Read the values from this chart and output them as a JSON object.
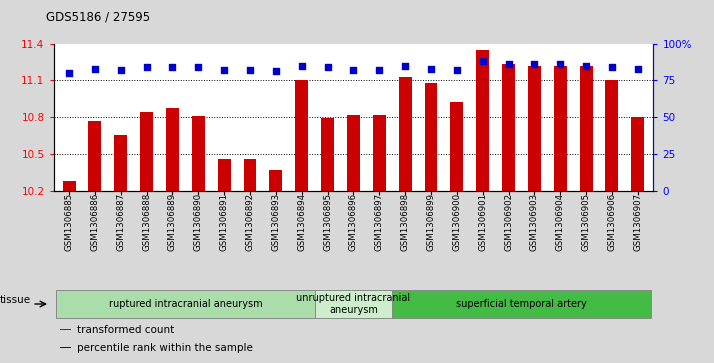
{
  "title": "GDS5186 / 27595",
  "samples": [
    "GSM1306885",
    "GSM1306886",
    "GSM1306887",
    "GSM1306888",
    "GSM1306889",
    "GSM1306890",
    "GSM1306891",
    "GSM1306892",
    "GSM1306893",
    "GSM1306894",
    "GSM1306895",
    "GSM1306896",
    "GSM1306897",
    "GSM1306898",
    "GSM1306899",
    "GSM1306900",
    "GSM1306901",
    "GSM1306902",
    "GSM1306903",
    "GSM1306904",
    "GSM1306905",
    "GSM1306906",
    "GSM1306907"
  ],
  "transformed_count": [
    10.28,
    10.77,
    10.65,
    10.84,
    10.87,
    10.81,
    10.46,
    10.46,
    10.37,
    11.1,
    10.79,
    10.82,
    10.82,
    11.13,
    11.08,
    10.92,
    11.35,
    11.23,
    11.22,
    11.22,
    11.22,
    11.1,
    10.8
  ],
  "percentile_rank": [
    80,
    83,
    82,
    84,
    84,
    84,
    82,
    82,
    81,
    85,
    84,
    82,
    82,
    85,
    83,
    82,
    88,
    86,
    86,
    86,
    85,
    84,
    83
  ],
  "bar_color": "#cc0000",
  "dot_color": "#0000cc",
  "ylim_left": [
    10.2,
    11.4
  ],
  "ylim_right": [
    0,
    100
  ],
  "yticks_left": [
    10.2,
    10.5,
    10.8,
    11.1,
    11.4
  ],
  "yticks_right": [
    0,
    25,
    50,
    75,
    100
  ],
  "ytick_labels_right": [
    "0",
    "25",
    "50",
    "75",
    "100%"
  ],
  "groups": [
    {
      "label": "ruptured intracranial aneurysm",
      "start": 0,
      "end": 9,
      "color": "#aaddaa"
    },
    {
      "label": "unruptured intracranial\naneurysm",
      "start": 10,
      "end": 12,
      "color": "#cceecc"
    },
    {
      "label": "superficial temporal artery",
      "start": 13,
      "end": 22,
      "color": "#44bb44"
    }
  ],
  "legend_items": [
    {
      "label": "transformed count",
      "color": "#cc0000"
    },
    {
      "label": "percentile rank within the sample",
      "color": "#0000cc"
    }
  ],
  "tissue_label": "tissue",
  "background_color": "#d8d8d8",
  "plot_bg": "#ffffff",
  "bar_width": 0.5
}
